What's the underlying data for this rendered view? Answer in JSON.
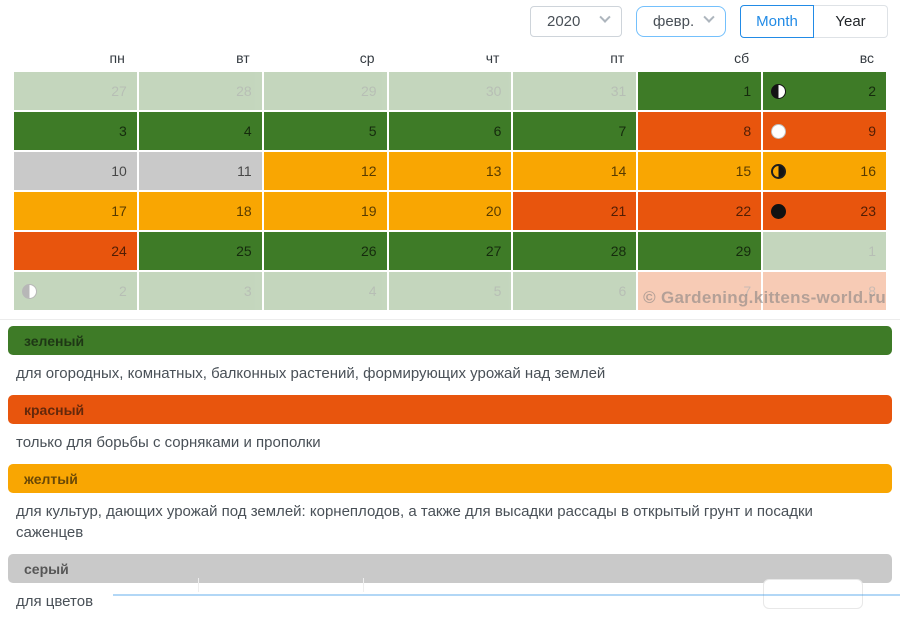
{
  "controls": {
    "year_select": {
      "value": "2020"
    },
    "month_select": {
      "value": "февр."
    },
    "view_toggle": {
      "month_label": "Month",
      "year_label": "Year",
      "active": "Month"
    }
  },
  "calendar": {
    "weekdays": [
      "пн",
      "вт",
      "ср",
      "чт",
      "пт",
      "сб",
      "вс"
    ],
    "cells": [
      {
        "day": "27",
        "type": "green",
        "faded": true
      },
      {
        "day": "28",
        "type": "green",
        "faded": true
      },
      {
        "day": "29",
        "type": "green",
        "faded": true
      },
      {
        "day": "30",
        "type": "green",
        "faded": true
      },
      {
        "day": "31",
        "type": "green",
        "faded": true
      },
      {
        "day": "1",
        "type": "green"
      },
      {
        "day": "2",
        "type": "green",
        "moon": "first-quarter"
      },
      {
        "day": "3",
        "type": "green"
      },
      {
        "day": "4",
        "type": "green"
      },
      {
        "day": "5",
        "type": "green"
      },
      {
        "day": "6",
        "type": "green"
      },
      {
        "day": "7",
        "type": "green"
      },
      {
        "day": "8",
        "type": "red"
      },
      {
        "day": "9",
        "type": "red",
        "moon": "full"
      },
      {
        "day": "10",
        "type": "gray"
      },
      {
        "day": "11",
        "type": "gray"
      },
      {
        "day": "12",
        "type": "yellow"
      },
      {
        "day": "13",
        "type": "yellow"
      },
      {
        "day": "14",
        "type": "yellow"
      },
      {
        "day": "15",
        "type": "yellow"
      },
      {
        "day": "16",
        "type": "yellow",
        "moon": "last-quarter"
      },
      {
        "day": "17",
        "type": "yellow"
      },
      {
        "day": "18",
        "type": "yellow"
      },
      {
        "day": "19",
        "type": "yellow"
      },
      {
        "day": "20",
        "type": "yellow"
      },
      {
        "day": "21",
        "type": "red"
      },
      {
        "day": "22",
        "type": "red"
      },
      {
        "day": "23",
        "type": "red",
        "moon": "new"
      },
      {
        "day": "24",
        "type": "red"
      },
      {
        "day": "25",
        "type": "green"
      },
      {
        "day": "26",
        "type": "green"
      },
      {
        "day": "27",
        "type": "green"
      },
      {
        "day": "28",
        "type": "green"
      },
      {
        "day": "29",
        "type": "green"
      },
      {
        "day": "1",
        "type": "green",
        "faded": true
      },
      {
        "day": "2",
        "type": "green",
        "faded": true,
        "moon": "first-quarter"
      },
      {
        "day": "3",
        "type": "green",
        "faded": true
      },
      {
        "day": "4",
        "type": "green",
        "faded": true
      },
      {
        "day": "5",
        "type": "green",
        "faded": true
      },
      {
        "day": "6",
        "type": "green",
        "faded": true
      },
      {
        "day": "7",
        "type": "red",
        "faded": true
      },
      {
        "day": "8",
        "type": "red",
        "faded": true
      }
    ],
    "moon_phases": {
      "first-quarter": "первая четверть",
      "full": "полнолуние",
      "last-quarter": "последняя четверть",
      "new": "новолуние"
    }
  },
  "watermark": "© Gardening.kittens-world.ru",
  "legend": {
    "items": [
      {
        "key": "green",
        "label": "зеленый",
        "description": "для огородных, комнатных, балконных растений, формирующих урожай над землей"
      },
      {
        "key": "red",
        "label": "красный",
        "description": "только для борьбы с сорняками и прополки"
      },
      {
        "key": "yellow",
        "label": "желтый",
        "description": "для культур, дающих урожай под землей: корнеплодов, а также для высадки рассады в открытый грунт и посадки саженцев"
      },
      {
        "key": "gray",
        "label": "серый",
        "description": "для цветов"
      }
    ]
  },
  "colors": {
    "green": "#3e7b27",
    "red": "#e8550d",
    "yellow": "#f9a602",
    "gray": "#c9c9c9",
    "blue": "#228be6",
    "select-border": "#ced4da",
    "month-border": "#74c0fc"
  }
}
